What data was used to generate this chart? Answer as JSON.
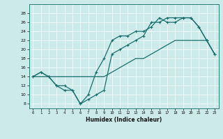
{
  "title": "",
  "xlabel": "Humidex (Indice chaleur)",
  "bg_color": "#cceaea",
  "line_color": "#1a6e6e",
  "xlim": [
    -0.5,
    23.5
  ],
  "ylim": [
    7,
    30
  ],
  "xticks": [
    0,
    1,
    2,
    3,
    4,
    5,
    6,
    7,
    8,
    9,
    10,
    11,
    12,
    13,
    14,
    15,
    16,
    17,
    18,
    19,
    20,
    21,
    22,
    23
  ],
  "yticks": [
    8,
    10,
    12,
    14,
    16,
    18,
    20,
    22,
    24,
    26,
    28
  ],
  "series1_x": [
    0,
    1,
    2,
    3,
    4,
    5,
    6,
    7,
    8,
    9,
    10,
    11,
    12,
    13,
    14,
    15,
    16,
    17,
    18,
    19,
    20,
    21,
    22,
    23
  ],
  "series1_y": [
    14,
    15,
    14,
    12,
    11,
    11,
    8,
    10,
    15,
    18,
    22,
    23,
    23,
    24,
    24,
    25,
    27,
    26,
    26,
    27,
    27,
    25,
    22,
    19
  ],
  "series2_x": [
    0,
    1,
    2,
    3,
    4,
    5,
    6,
    7,
    8,
    9,
    10,
    11,
    12,
    13,
    14,
    15,
    16,
    17,
    18,
    19,
    20,
    21,
    22,
    23
  ],
  "series2_y": [
    14,
    15,
    14,
    12,
    12,
    11,
    8,
    9,
    10,
    11,
    19,
    20,
    21,
    22,
    23,
    26,
    26,
    27,
    27,
    27,
    27,
    25,
    22,
    19
  ],
  "series3_x": [
    0,
    2,
    9,
    10,
    11,
    12,
    13,
    14,
    15,
    16,
    17,
    18,
    19,
    20,
    21,
    22,
    23
  ],
  "series3_y": [
    14,
    14,
    14,
    15,
    16,
    17,
    18,
    18,
    19,
    20,
    21,
    22,
    22,
    22,
    22,
    22,
    19
  ]
}
